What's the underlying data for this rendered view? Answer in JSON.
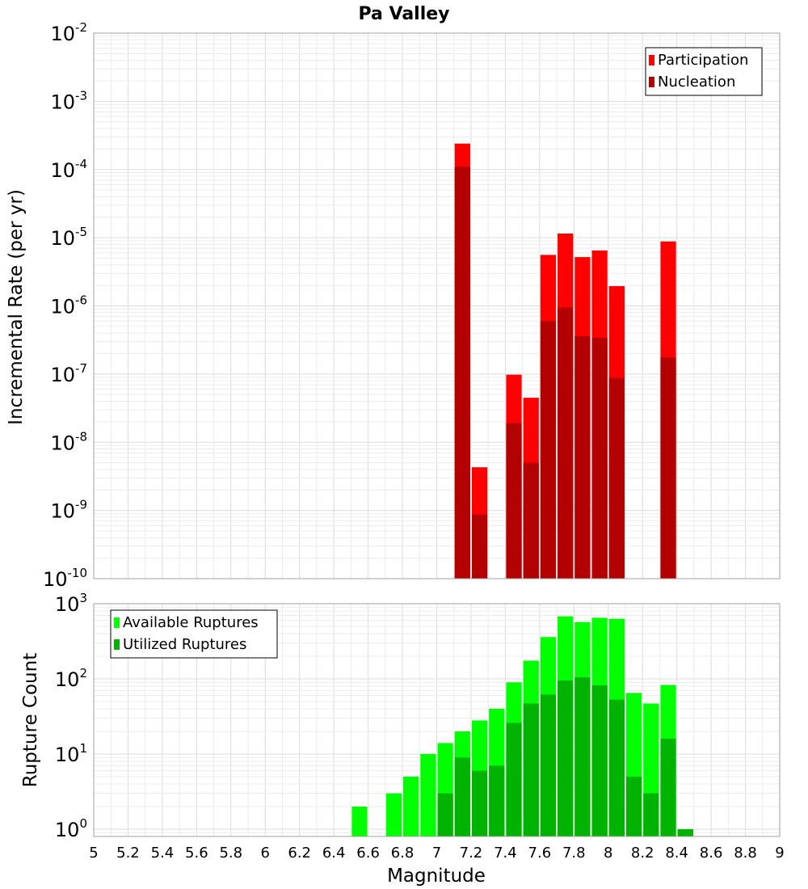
{
  "title": "Pa Valley",
  "chart_data": [
    {
      "type": "bar",
      "panel": "top",
      "ylabel": "Incremental Rate (per yr)",
      "xlabel": "",
      "yscale": "log",
      "ylim": [
        1e-10,
        0.01
      ],
      "xlim": [
        5,
        9
      ],
      "bin_width": 0.1,
      "grid": true,
      "legend_position": "top-right",
      "series": [
        {
          "name": "Participation",
          "color": "#ff0000",
          "points": [
            {
              "x": 7.15,
              "y": 0.00024
            },
            {
              "x": 7.25,
              "y": 4.3e-09
            },
            {
              "x": 7.45,
              "y": 9.8e-08
            },
            {
              "x": 7.55,
              "y": 4.5e-08
            },
            {
              "x": 7.65,
              "y": 5.6e-06
            },
            {
              "x": 7.75,
              "y": 1.15e-05
            },
            {
              "x": 7.85,
              "y": 5.2e-06
            },
            {
              "x": 7.95,
              "y": 6.5e-06
            },
            {
              "x": 8.05,
              "y": 1.95e-06
            },
            {
              "x": 8.35,
              "y": 8.8e-06
            }
          ]
        },
        {
          "name": "Nucleation",
          "color": "#b30000",
          "points": [
            {
              "x": 7.15,
              "y": 0.00011
            },
            {
              "x": 7.25,
              "y": 8.7e-10
            },
            {
              "x": 7.45,
              "y": 1.9e-08
            },
            {
              "x": 7.55,
              "y": 5e-09
            },
            {
              "x": 7.65,
              "y": 6e-07
            },
            {
              "x": 7.75,
              "y": 9.5e-07
            },
            {
              "x": 7.85,
              "y": 3.6e-07
            },
            {
              "x": 7.95,
              "y": 3.4e-07
            },
            {
              "x": 8.05,
              "y": 8.8e-08
            },
            {
              "x": 8.35,
              "y": 1.75e-07
            }
          ]
        }
      ]
    },
    {
      "type": "bar",
      "panel": "bottom",
      "ylabel": "Rupture Count",
      "xlabel": "Magnitude",
      "yscale": "log",
      "ylim": [
        0.8,
        1000
      ],
      "xlim": [
        5,
        9
      ],
      "bin_width": 0.1,
      "grid": true,
      "legend_position": "top-left",
      "x_ticks": [
        "5",
        "5.2",
        "5.4",
        "5.6",
        "5.8",
        "6",
        "6.2",
        "6.4",
        "6.6",
        "6.8",
        "7",
        "7.2",
        "7.4",
        "7.6",
        "7.8",
        "8",
        "8.2",
        "8.4",
        "8.6",
        "8.8",
        "9"
      ],
      "series": [
        {
          "name": "Available Ruptures",
          "color": "#00ff00",
          "points": [
            {
              "x": 6.55,
              "y": 2
            },
            {
              "x": 6.75,
              "y": 3
            },
            {
              "x": 6.85,
              "y": 5
            },
            {
              "x": 6.95,
              "y": 10
            },
            {
              "x": 7.05,
              "y": 14
            },
            {
              "x": 7.15,
              "y": 20
            },
            {
              "x": 7.25,
              "y": 28
            },
            {
              "x": 7.35,
              "y": 40
            },
            {
              "x": 7.45,
              "y": 90
            },
            {
              "x": 7.55,
              "y": 175
            },
            {
              "x": 7.65,
              "y": 360
            },
            {
              "x": 7.75,
              "y": 680
            },
            {
              "x": 7.85,
              "y": 570
            },
            {
              "x": 7.95,
              "y": 650
            },
            {
              "x": 8.05,
              "y": 630
            },
            {
              "x": 8.15,
              "y": 65
            },
            {
              "x": 8.25,
              "y": 47
            },
            {
              "x": 8.35,
              "y": 83
            },
            {
              "x": 8.45,
              "y": 1
            }
          ]
        },
        {
          "name": "Utilized Ruptures",
          "color": "#00b300",
          "points": [
            {
              "x": 7.05,
              "y": 3
            },
            {
              "x": 7.15,
              "y": 9
            },
            {
              "x": 7.25,
              "y": 6
            },
            {
              "x": 7.35,
              "y": 7
            },
            {
              "x": 7.45,
              "y": 26
            },
            {
              "x": 7.55,
              "y": 47
            },
            {
              "x": 7.65,
              "y": 62
            },
            {
              "x": 7.75,
              "y": 95
            },
            {
              "x": 7.85,
              "y": 105
            },
            {
              "x": 7.95,
              "y": 82
            },
            {
              "x": 8.05,
              "y": 53
            },
            {
              "x": 8.15,
              "y": 5
            },
            {
              "x": 8.25,
              "y": 3
            },
            {
              "x": 8.35,
              "y": 16
            },
            {
              "x": 8.45,
              "y": 1
            }
          ]
        }
      ]
    }
  ]
}
